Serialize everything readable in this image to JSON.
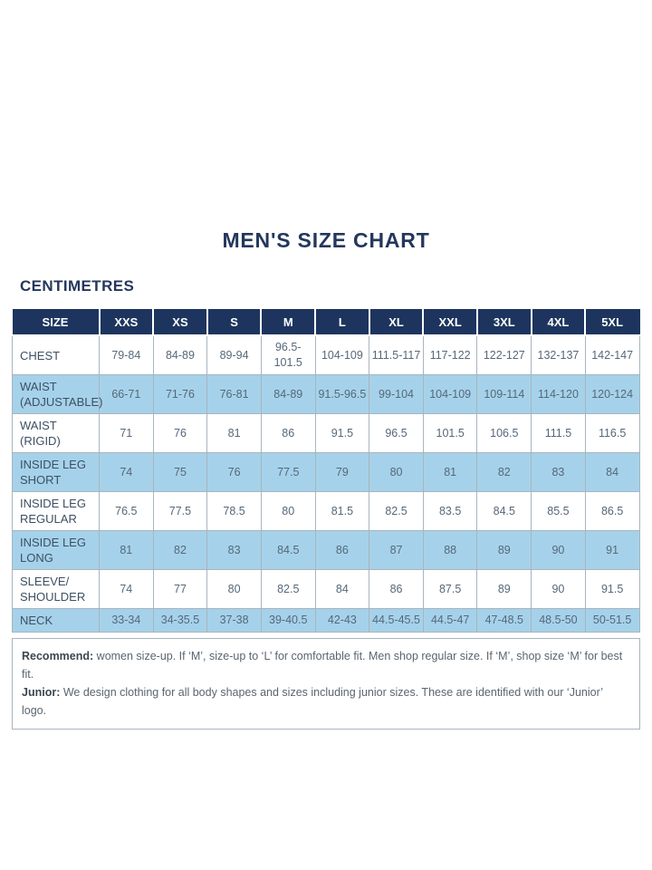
{
  "title": "MEN'S SIZE CHART",
  "units_label": "CENTIMETRES",
  "table": {
    "columns": [
      "SIZE",
      "XXS",
      "XS",
      "S",
      "M",
      "L",
      "XL",
      "XXL",
      "3XL",
      "4XL",
      "5XL"
    ],
    "rows": [
      {
        "label": "CHEST",
        "values": [
          "79-84",
          "84-89",
          "89-94",
          "96.5-101.5",
          "104-109",
          "111.5-117",
          "117-122",
          "122-127",
          "132-137",
          "142-147"
        ]
      },
      {
        "label": "WAIST\n(ADJUSTABLE)",
        "values": [
          "66-71",
          "71-76",
          "76-81",
          "84-89",
          "91.5-96.5",
          "99-104",
          "104-109",
          "109-114",
          "114-120",
          "120-124"
        ]
      },
      {
        "label": "WAIST (RIGID)",
        "values": [
          "71",
          "76",
          "81",
          "86",
          "91.5",
          "96.5",
          "101.5",
          "106.5",
          "111.5",
          "116.5"
        ]
      },
      {
        "label": "INSIDE LEG\nSHORT",
        "values": [
          "74",
          "75",
          "76",
          "77.5",
          "79",
          "80",
          "81",
          "82",
          "83",
          "84"
        ]
      },
      {
        "label": "INSIDE LEG\nREGULAR",
        "values": [
          "76.5",
          "77.5",
          "78.5",
          "80",
          "81.5",
          "82.5",
          "83.5",
          "84.5",
          "85.5",
          "86.5"
        ]
      },
      {
        "label": "INSIDE LEG\nLONG",
        "values": [
          "81",
          "82",
          "83",
          "84.5",
          "86",
          "87",
          "88",
          "89",
          "90",
          "91"
        ]
      },
      {
        "label": "SLEEVE/\nSHOULDER",
        "values": [
          "74",
          "77",
          "80",
          "82.5",
          "84",
          "86",
          "87.5",
          "89",
          "90",
          "91.5"
        ]
      },
      {
        "label": "NECK",
        "values": [
          "33-34",
          "34-35.5",
          "37-38",
          "39-40.5",
          "42-43",
          "44.5-45.5",
          "44.5-47",
          "47-48.5",
          "48.5-50",
          "50-51.5"
        ]
      }
    ]
  },
  "notes": [
    {
      "label": "Recommend:",
      "text": " women size-up. If ‘M’, size-up to ‘L’ for comfortable fit. Men shop regular size. If ‘M’, shop size ‘M’ for best fit."
    },
    {
      "label": "Junior:",
      "text": " We design clothing for all body shapes and sizes including junior sizes. These are identified with our ‘Junior’ logo."
    }
  ],
  "colors": {
    "header_navy": "#1d355e",
    "row_blue": "#a5d2ea",
    "title_navy": "#24375c",
    "cell_text": "#56687a",
    "border_gray": "#aab4bd"
  }
}
